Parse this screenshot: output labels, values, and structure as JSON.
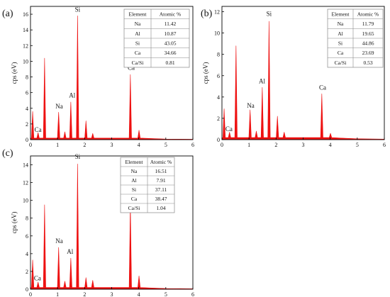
{
  "figure": {
    "panels": [
      {
        "id": "a",
        "label": "(a)",
        "ylabel": "cps (eV)",
        "ylim": [
          0,
          17
        ],
        "yticks": [
          0,
          2,
          4,
          6,
          8,
          10,
          12,
          14,
          16
        ],
        "xlim": [
          0,
          6
        ],
        "xticks": [
          0,
          1,
          2,
          3,
          4,
          5,
          6
        ],
        "table": {
          "headers": [
            "Element",
            "Atomic %"
          ],
          "rows": [
            [
              "Na",
              "11.42"
            ],
            [
              "Al",
              "10.87"
            ],
            [
              "Si",
              "43.05"
            ],
            [
              "Ca",
              "34.66"
            ],
            [
              "Ca/Si",
              "0.81"
            ]
          ]
        },
        "peak_labels": [
          {
            "text": "Ca",
            "x": 0.28,
            "y": 1.0
          },
          {
            "text": "Na",
            "x": 1.06,
            "y": 4.0
          },
          {
            "text": "Al",
            "x": 1.54,
            "y": 5.4
          },
          {
            "text": "Si",
            "x": 1.74,
            "y": 16.3
          },
          {
            "text": "Ca",
            "x": 3.72,
            "y": 8.9
          }
        ],
        "spectrum": [
          [
            0.08,
            3.6
          ],
          [
            0.28,
            0.9
          ],
          [
            0.52,
            10.4
          ],
          [
            1.04,
            3.5
          ],
          [
            1.27,
            1.0
          ],
          [
            1.49,
            4.8
          ],
          [
            1.74,
            15.8
          ],
          [
            2.05,
            2.4
          ],
          [
            2.3,
            0.8
          ],
          [
            3.69,
            8.3
          ],
          [
            4.01,
            1.2
          ]
        ]
      },
      {
        "id": "b",
        "label": "(b)",
        "ylabel": "cps (eV)",
        "ylim": [
          0,
          12.5
        ],
        "yticks": [
          0,
          2,
          4,
          6,
          8,
          10,
          12
        ],
        "xlim": [
          0,
          6
        ],
        "xticks": [
          0,
          1,
          2,
          3,
          4,
          5,
          6
        ],
        "table": {
          "headers": [
            "Element",
            "Atomic %"
          ],
          "rows": [
            [
              "Na",
              "11.79"
            ],
            [
              "Al",
              "19.65"
            ],
            [
              "Si",
              "44.86"
            ],
            [
              "Ca",
              "23.69"
            ],
            [
              "Ca/Si",
              "0.53"
            ]
          ]
        },
        "peak_labels": [
          {
            "text": "Ca",
            "x": 0.26,
            "y": 0.8
          },
          {
            "text": "Na",
            "x": 1.06,
            "y": 3.0
          },
          {
            "text": "Al",
            "x": 1.48,
            "y": 5.3
          },
          {
            "text": "Si",
            "x": 1.74,
            "y": 11.6
          },
          {
            "text": "Ca",
            "x": 3.72,
            "y": 4.7
          }
        ],
        "spectrum": [
          [
            0.08,
            2.9
          ],
          [
            0.28,
            0.7
          ],
          [
            0.52,
            8.8
          ],
          [
            1.04,
            2.8
          ],
          [
            1.27,
            0.8
          ],
          [
            1.49,
            4.9
          ],
          [
            1.74,
            11.1
          ],
          [
            2.05,
            2.2
          ],
          [
            2.3,
            0.7
          ],
          [
            3.69,
            4.3
          ],
          [
            4.01,
            0.6
          ]
        ]
      },
      {
        "id": "c",
        "label": "(c)",
        "ylabel": "cps (eV)",
        "ylim": [
          0,
          15
        ],
        "yticks": [
          0,
          2,
          4,
          6,
          8,
          10,
          12,
          14
        ],
        "xlim": [
          0,
          6
        ],
        "xticks": [
          0,
          1,
          2,
          3,
          4,
          5,
          6
        ],
        "table": {
          "headers": [
            "Element",
            "Atomic %"
          ],
          "rows": [
            [
              "Na",
              "16.51"
            ],
            [
              "Al",
              "7.91"
            ],
            [
              "Si",
              "37.11"
            ],
            [
              "Ca",
              "38.47"
            ],
            [
              "Ca/Si",
              "1.04"
            ]
          ]
        },
        "peak_labels": [
          {
            "text": "Ca",
            "x": 0.26,
            "y": 1.0
          },
          {
            "text": "Na",
            "x": 1.06,
            "y": 5.2
          },
          {
            "text": "Al",
            "x": 1.46,
            "y": 4.0
          },
          {
            "text": "Si",
            "x": 1.74,
            "y": 14.7
          },
          {
            "text": "Ca",
            "x": 3.72,
            "y": 10.3
          }
        ],
        "spectrum": [
          [
            0.08,
            3.3
          ],
          [
            0.28,
            0.8
          ],
          [
            0.52,
            9.5
          ],
          [
            1.04,
            4.7
          ],
          [
            1.27,
            0.9
          ],
          [
            1.49,
            3.5
          ],
          [
            1.74,
            14.1
          ],
          [
            2.05,
            1.3
          ],
          [
            2.3,
            1.0
          ],
          [
            3.69,
            9.6
          ],
          [
            4.01,
            1.5
          ]
        ]
      }
    ]
  },
  "chart_data": [
    {
      "type": "area",
      "panel": "(a)",
      "ylabel": "cps (eV)",
      "x_range": [
        0,
        6
      ],
      "ylim": [
        0,
        17
      ],
      "series": [
        {
          "x": [
            0.08,
            0.28,
            0.52,
            1.04,
            1.27,
            1.49,
            1.74,
            2.05,
            2.3,
            3.69,
            4.01
          ],
          "values": [
            3.6,
            0.9,
            10.4,
            3.5,
            1.0,
            4.8,
            15.8,
            2.4,
            0.8,
            8.3,
            1.2
          ]
        }
      ],
      "table": {
        "Na": 11.42,
        "Al": 10.87,
        "Si": 43.05,
        "Ca": 34.66,
        "Ca/Si": 0.81
      }
    },
    {
      "type": "area",
      "panel": "(b)",
      "ylabel": "cps (eV)",
      "x_range": [
        0,
        6
      ],
      "ylim": [
        0,
        12.5
      ],
      "series": [
        {
          "x": [
            0.08,
            0.28,
            0.52,
            1.04,
            1.27,
            1.49,
            1.74,
            2.05,
            2.3,
            3.69,
            4.01
          ],
          "values": [
            2.9,
            0.7,
            8.8,
            2.8,
            0.8,
            4.9,
            11.1,
            2.2,
            0.7,
            4.3,
            0.6
          ]
        }
      ],
      "table": {
        "Na": 11.79,
        "Al": 19.65,
        "Si": 44.86,
        "Ca": 23.69,
        "Ca/Si": 0.53
      }
    },
    {
      "type": "area",
      "panel": "(c)",
      "ylabel": "cps (eV)",
      "x_range": [
        0,
        6
      ],
      "ylim": [
        0,
        15
      ],
      "series": [
        {
          "x": [
            0.08,
            0.28,
            0.52,
            1.04,
            1.27,
            1.49,
            1.74,
            2.05,
            2.3,
            3.69,
            4.01
          ],
          "values": [
            3.3,
            0.8,
            9.5,
            4.7,
            0.9,
            3.5,
            14.1,
            1.3,
            1.0,
            9.6,
            1.5
          ]
        }
      ],
      "table": {
        "Na": 16.51,
        "Al": 7.91,
        "Si": 37.11,
        "Ca": 38.47,
        "Ca/Si": 1.04
      }
    }
  ],
  "style": {
    "spectrum_color": "#ee1111",
    "axis_color": "#000000",
    "table_border": "#888888"
  }
}
